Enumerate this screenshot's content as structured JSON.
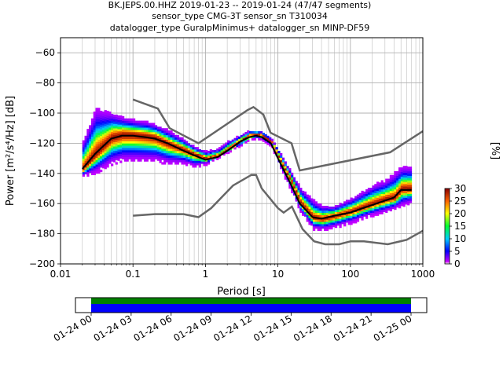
{
  "title_lines": [
    "BK.JEPS.00.HHZ   2019-01-23 -- 2019-01-24  (47/47 segments)",
    "sensor_type CMG-3T sensor_sn T310034",
    "datalogger_type GuralpMinimus+ datalogger_sn MINP-DF59"
  ],
  "chart_data": [
    {
      "type": "heatmap",
      "xlabel": "Period [s]",
      "ylabel": "Power [m²/s⁴/Hz] [dB]",
      "xscale": "log",
      "xlim": [
        0.01,
        1000
      ],
      "ylim": [
        -200,
        -50
      ],
      "xticks": [
        0.01,
        0.1,
        1,
        10,
        100,
        1000
      ],
      "xtick_labels": [
        "0.01",
        "0.1",
        "1",
        "10",
        "100",
        "1000"
      ],
      "yticks": [
        -200,
        -180,
        -160,
        -140,
        -120,
        -100,
        -80,
        -60
      ],
      "ytick_labels": [
        "−200",
        "−180",
        "−160",
        "−140",
        "−120",
        "−100",
        "−80",
        "−60"
      ],
      "grid": true,
      "colorbar": {
        "label": "[%]",
        "range": [
          0,
          30
        ],
        "ticks": [
          0,
          5,
          10,
          15,
          20,
          25,
          30
        ],
        "colors": [
          "#ffffff",
          "#aa00ff",
          "#0000ff",
          "#00ccff",
          "#00ff33",
          "#ffff00",
          "#ff8800",
          "#ff0000",
          "#880000"
        ]
      },
      "band": {
        "periods": [
          0.02,
          0.03,
          0.05,
          0.07,
          0.1,
          0.15,
          0.2,
          0.3,
          0.5,
          0.7,
          1,
          1.5,
          2,
          3,
          4,
          5,
          6,
          8,
          10,
          15,
          20,
          30,
          40,
          60,
          100,
          150,
          200,
          300,
          400,
          500,
          700
        ],
        "upper": [
          -118,
          -97,
          -100,
          -103,
          -105,
          -106,
          -108,
          -112,
          -118,
          -123,
          -126,
          -124,
          -119,
          -115,
          -112,
          -112,
          -113,
          -118,
          -125,
          -140,
          -150,
          -158,
          -162,
          -162,
          -157,
          -152,
          -148,
          -145,
          -140,
          -136,
          -136
        ],
        "lower": [
          -142,
          -140,
          -134,
          -132,
          -132,
          -132,
          -132,
          -134,
          -134,
          -136,
          -134,
          -130,
          -126,
          -122,
          -118,
          -117,
          -118,
          -122,
          -134,
          -152,
          -166,
          -177,
          -178,
          -176,
          -173,
          -170,
          -168,
          -166,
          -164,
          -162,
          -160
        ],
        "mode": [
          -138,
          -128,
          -117,
          -115,
          -115,
          -116,
          -117,
          -121,
          -125,
          -128,
          -131,
          -129,
          -125,
          -119,
          -116,
          -115,
          -116,
          -120,
          -130,
          -146,
          -160,
          -170,
          -171,
          -169,
          -166,
          -163,
          -161,
          -158,
          -157,
          -151,
          -151
        ]
      },
      "mean_line": {
        "x": [
          0.02,
          0.03,
          0.05,
          0.07,
          0.1,
          0.15,
          0.2,
          0.3,
          0.5,
          0.7,
          1,
          1.5,
          2,
          3,
          4,
          5,
          6,
          8,
          10,
          15,
          20,
          30,
          40,
          60,
          100,
          150,
          200,
          300,
          400,
          500,
          700
        ],
        "y": [
          -137,
          -127,
          -117,
          -115,
          -115,
          -116,
          -117,
          -120,
          -125,
          -128,
          -131,
          -129,
          -125,
          -119,
          -116,
          -115,
          -116,
          -120,
          -130,
          -147,
          -160,
          -169,
          -170,
          -168,
          -166,
          -163,
          -161,
          -158,
          -156,
          -151,
          -151
        ]
      },
      "nhnm": {
        "x": [
          0.1,
          0.22,
          0.32,
          0.8,
          3.8,
          4.6,
          6.3,
          7.9,
          15.4,
          20,
          354,
          1000
        ],
        "y": [
          -91,
          -97,
          -110,
          -120,
          -98,
          -96,
          -101,
          -113,
          -120,
          -138,
          -126,
          -112
        ]
      },
      "nlnm": {
        "x": [
          0.1,
          0.2,
          0.5,
          0.8,
          1.2,
          2.4,
          4.3,
          5,
          6,
          10,
          12,
          15.6,
          21.9,
          31.6,
          45,
          70,
          101,
          154,
          328,
          600,
          1000
        ],
        "y": [
          -168,
          -167,
          -167,
          -169,
          -163,
          -148,
          -141,
          -141,
          -150,
          -163,
          -166,
          -162,
          -177,
          -185,
          -187,
          -187,
          -185,
          -185,
          -187,
          -184,
          -178
        ]
      }
    },
    {
      "type": "area",
      "xtick_labels": [
        "01-24 00",
        "01-24 03",
        "01-24 06",
        "01-24 09",
        "01-24 12",
        "01-24 15",
        "01-24 18",
        "01-24 21",
        "01-25 00"
      ],
      "rows": [
        {
          "color": "#008000",
          "start": "01-24 00",
          "end": "01-25 00"
        },
        {
          "color": "#0000ff",
          "start": "01-24 00",
          "end": "01-25 00"
        }
      ]
    }
  ]
}
